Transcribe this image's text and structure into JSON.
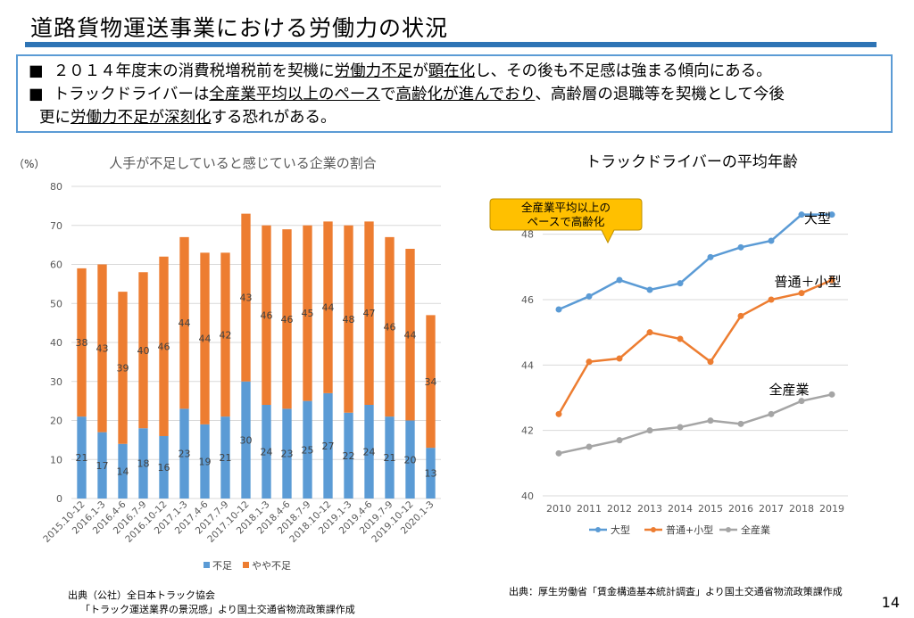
{
  "page": {
    "title": "道路貨物運送事業における労働力の状況",
    "page_number": "14"
  },
  "summary": {
    "bullet": "■",
    "line1": {
      "a": "２０１４年度末の消費税増税前を契機に",
      "b": "労働力不足",
      "c": "が",
      "d": "顕在化",
      "e": "し、その後も不足感は強まる傾向にある。"
    },
    "line2": {
      "a": "トラックドライバーは",
      "b": "全産業平均以上のペース",
      "c": "で",
      "d": "高齢化が進んでおり",
      "e": "、高齢層の退職等を契機として今後"
    },
    "line3": {
      "a": "更に",
      "b": "労働力不足が深刻化",
      "c": "する恐れがある。"
    }
  },
  "colors": {
    "blue": "#5b9bd5",
    "orange": "#ed7d31",
    "gray": "#a5a5a5",
    "callout": "#ffc000"
  },
  "chart_data": [
    {
      "type": "bar",
      "stacked": true,
      "title": "人手が不足していると感じている企業の割合",
      "unit": "（%）",
      "ylim": [
        0,
        80
      ],
      "yticks": [
        0,
        10,
        20,
        30,
        40,
        50,
        60,
        70,
        80
      ],
      "categories": [
        "2015.10-12",
        "2016.1-3",
        "2016.4-6",
        "2016.7-9",
        "2016.10-12",
        "2017.1-3",
        "2017.4-6",
        "2017.7-9",
        "2017.10-12",
        "2018.1-3",
        "2018.4-6",
        "2018.7-9",
        "2018.10-12",
        "2019.1-3",
        "2019.4-6",
        "2019.7-9",
        "2019.10-12",
        "2020.1-3"
      ],
      "series": [
        {
          "name": "不足",
          "color": "#5b9bd5",
          "values": [
            21,
            17,
            14,
            18,
            16,
            23,
            19,
            21,
            30,
            24,
            23,
            25,
            27,
            22,
            24,
            21,
            20,
            13
          ]
        },
        {
          "name": "やや不足",
          "color": "#ed7d31",
          "values": [
            38,
            43,
            39,
            40,
            46,
            44,
            44,
            42,
            43,
            46,
            46,
            45,
            44,
            48,
            47,
            46,
            44,
            34
          ]
        }
      ],
      "legend": "bottom",
      "source": [
        "出典（公社）全日本トラック協会",
        "「トラック運送業界の景況感」より国土交通省物流政策課作成"
      ]
    },
    {
      "type": "line",
      "title": "トラックドライバーの平均年齢",
      "x": [
        2010,
        2011,
        2012,
        2013,
        2014,
        2015,
        2016,
        2017,
        2018,
        2019
      ],
      "ylim": [
        40,
        49
      ],
      "yticks": [
        40,
        42,
        44,
        46,
        48
      ],
      "series": [
        {
          "name": "大型",
          "label": "大型",
          "color": "#5b9bd5",
          "values": [
            45.7,
            46.1,
            46.6,
            46.3,
            46.5,
            47.3,
            47.6,
            47.8,
            48.6,
            48.6
          ]
        },
        {
          "name": "普通+小型",
          "label": "普通＋小型",
          "color": "#ed7d31",
          "values": [
            42.5,
            44.1,
            44.2,
            45.0,
            44.8,
            44.1,
            45.5,
            46.0,
            46.2,
            46.6
          ]
        },
        {
          "name": "全産業",
          "label": "全産業",
          "color": "#a5a5a5",
          "values": [
            41.3,
            41.5,
            41.7,
            42.0,
            42.1,
            42.3,
            42.2,
            42.5,
            42.9,
            43.1
          ]
        }
      ],
      "callout": [
        "全産業平均以上の",
        "ペースで高齢化"
      ],
      "legend": "bottom",
      "source": "出典：厚生労働省「賃金構造基本統計調査」より国土交通省物流政策課作成"
    }
  ]
}
